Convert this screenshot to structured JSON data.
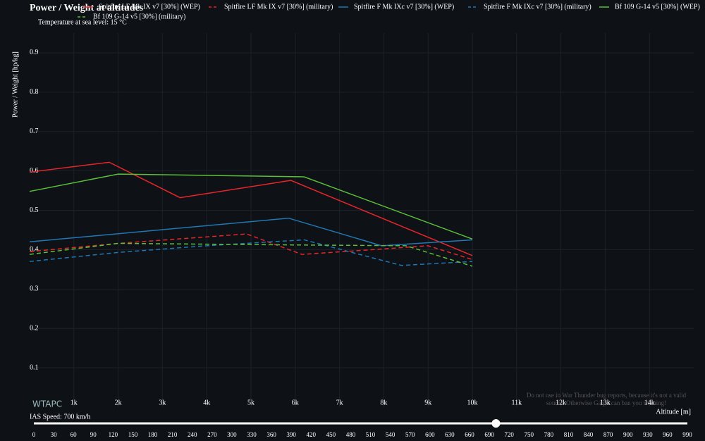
{
  "chart_data": {
    "type": "line",
    "title": "Power / Weight at altitudes",
    "subtitle": "Temperature at sea level: 15 °C",
    "x_label": "Altitude [m]",
    "y_label": "Power / Weight [hp/kg]",
    "xlim": [
      0,
      15000
    ],
    "ylim": [
      0,
      0.95
    ],
    "xticks": [
      {
        "value": 1000,
        "label": "1k"
      },
      {
        "value": 2000,
        "label": "2k"
      },
      {
        "value": 3000,
        "label": "3k"
      },
      {
        "value": 4000,
        "label": "4k"
      },
      {
        "value": 5000,
        "label": "5k"
      },
      {
        "value": 6000,
        "label": "6k"
      },
      {
        "value": 7000,
        "label": "7k"
      },
      {
        "value": 8000,
        "label": "8k"
      },
      {
        "value": 9000,
        "label": "9k"
      },
      {
        "value": 10000,
        "label": "10k"
      },
      {
        "value": 11000,
        "label": "11k"
      },
      {
        "value": 12000,
        "label": "12k"
      },
      {
        "value": 13000,
        "label": "13k"
      },
      {
        "value": 14000,
        "label": "14k"
      }
    ],
    "yticks": [
      0.1,
      0.2,
      0.3,
      0.4,
      0.5,
      0.6,
      0.7,
      0.8,
      0.9
    ],
    "grid": true,
    "series": [
      {
        "name": "Spitfire LF Mk IX v7 [30%] (WEP)",
        "color": "#e8262a",
        "dash": false,
        "x": [
          0,
          1800,
          3400,
          5900,
          10000
        ],
        "values": [
          0.597,
          0.622,
          0.532,
          0.576,
          0.385
        ]
      },
      {
        "name": "Spitfire LF Mk IX v7 [30%] (military)",
        "color": "#e8262a",
        "dash": true,
        "x": [
          0,
          2000,
          4900,
          6150,
          8000,
          9000,
          10000
        ],
        "values": [
          0.395,
          0.416,
          0.44,
          0.388,
          0.402,
          0.41,
          0.375
        ]
      },
      {
        "name": "Spitfire F Mk IXc v7 [30%] (WEP)",
        "color": "#1f77b4",
        "dash": false,
        "x": [
          0,
          5850,
          7950,
          10000
        ],
        "values": [
          0.42,
          0.48,
          0.41,
          0.425
        ]
      },
      {
        "name": "Spitfire F Mk IXc v7 [30%] (military)",
        "color": "#1f77b4",
        "dash": true,
        "x": [
          0,
          2000,
          4000,
          6200,
          8400,
          10000
        ],
        "values": [
          0.37,
          0.393,
          0.41,
          0.425,
          0.36,
          0.37
        ]
      },
      {
        "name": "Bf 109 G-14 v5 [30%] (WEP)",
        "color": "#5cbf3a",
        "dash": false,
        "x": [
          0,
          2000,
          6200,
          10000
        ],
        "values": [
          0.548,
          0.592,
          0.585,
          0.427
        ]
      },
      {
        "name": "Bf 109 G-14 v5 [30%] (military)",
        "color": "#5cbf3a",
        "dash": true,
        "x": [
          0,
          2000,
          6000,
          8500,
          10000
        ],
        "values": [
          0.388,
          0.416,
          0.412,
          0.41,
          0.358
        ]
      }
    ]
  },
  "watermark": {
    "logo": "WTAPC",
    "notice": "Do not use in War Thunder bug reports, because it's not a valid source. Otherwise Gaijin can ban you warning!"
  },
  "slider": {
    "label": "IAS Speed: 700 km/h",
    "value": 700,
    "range": [
      0,
      990
    ],
    "ticks": [
      0,
      30,
      60,
      90,
      120,
      150,
      180,
      210,
      240,
      270,
      300,
      330,
      360,
      390,
      420,
      450,
      480,
      510,
      540,
      570,
      600,
      630,
      660,
      690,
      720,
      750,
      780,
      810,
      840,
      870,
      900,
      930,
      960,
      990
    ]
  }
}
